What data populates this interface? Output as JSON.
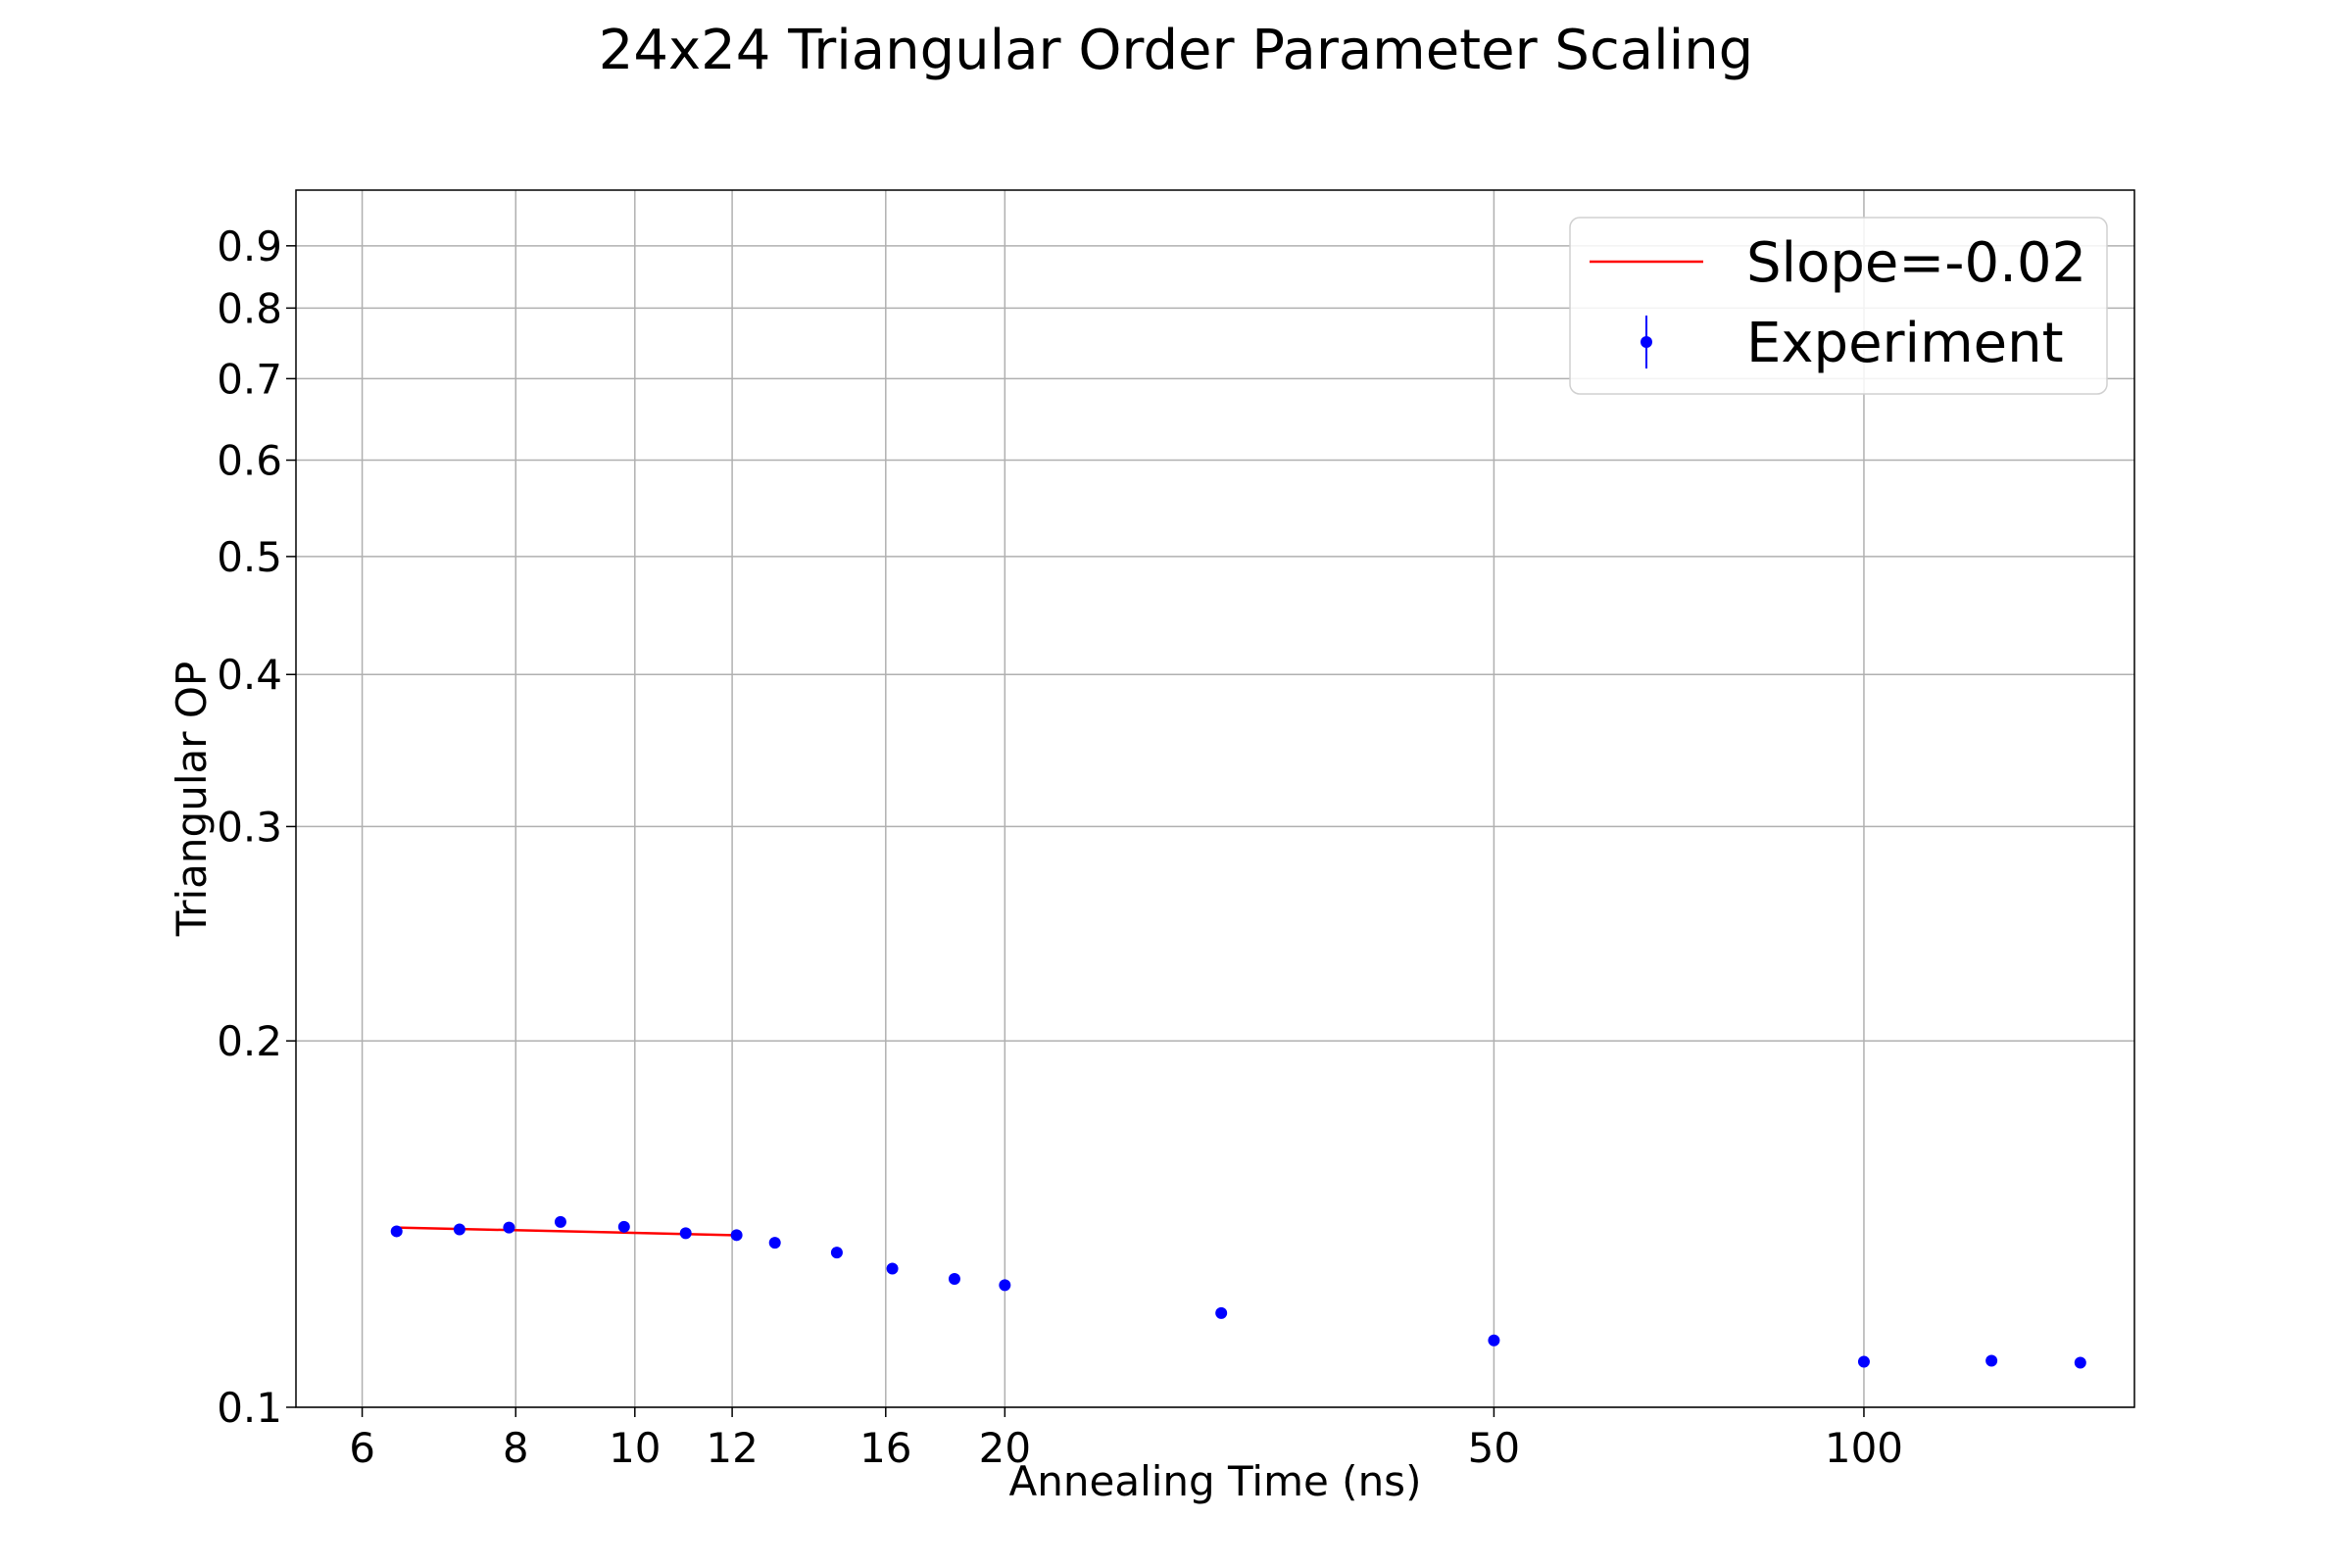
{
  "chart_data": {
    "type": "scatter",
    "title": "24x24 Triangular Order Parameter Scaling",
    "xlabel": "Annealing Time (ns)",
    "ylabel": "Triangular OP",
    "xscale": "log",
    "yscale": "log",
    "xlim": [
      5.3,
      166
    ],
    "ylim": [
      0.1,
      1.0
    ],
    "grid": true,
    "legend_position": "top-right",
    "xticks": [
      {
        "value": 6,
        "label": "6"
      },
      {
        "value": 8,
        "label": "8"
      },
      {
        "value": 10,
        "label": "10"
      },
      {
        "value": 12,
        "label": "12"
      },
      {
        "value": 16,
        "label": "16"
      },
      {
        "value": 20,
        "label": "20"
      },
      {
        "value": 50,
        "label": "50"
      },
      {
        "value": 100,
        "label": "100"
      }
    ],
    "yticks": [
      {
        "value": 0.1,
        "label": "0.1"
      },
      {
        "value": 0.2,
        "label": "0.2"
      },
      {
        "value": 0.3,
        "label": "0.3"
      },
      {
        "value": 0.4,
        "label": "0.4"
      },
      {
        "value": 0.5,
        "label": "0.5"
      },
      {
        "value": 0.6,
        "label": "0.6"
      },
      {
        "value": 0.7,
        "label": "0.7"
      },
      {
        "value": 0.8,
        "label": "0.8"
      },
      {
        "value": 0.9,
        "label": "0.9"
      }
    ],
    "series": [
      {
        "name": "Slope=-0.02",
        "kind": "line",
        "color": "#ff0000",
        "x": [
          6.4,
          12.0
        ],
        "y": [
          0.1405,
          0.1385
        ]
      },
      {
        "name": "Experiment",
        "kind": "errorbar-markers",
        "color": "#0000ff",
        "x": [
          6.4,
          7.2,
          7.9,
          8.7,
          9.8,
          11.0,
          12.1,
          13.0,
          14.6,
          16.2,
          18.2,
          20.0,
          30.0,
          50.0,
          100.0,
          127.0,
          150.0
        ],
        "y": [
          0.1395,
          0.14,
          0.1405,
          0.142,
          0.1407,
          0.139,
          0.1385,
          0.1365,
          0.134,
          0.13,
          0.1275,
          0.126,
          0.1195,
          0.1135,
          0.109,
          0.1092,
          0.1088
        ]
      }
    ]
  }
}
